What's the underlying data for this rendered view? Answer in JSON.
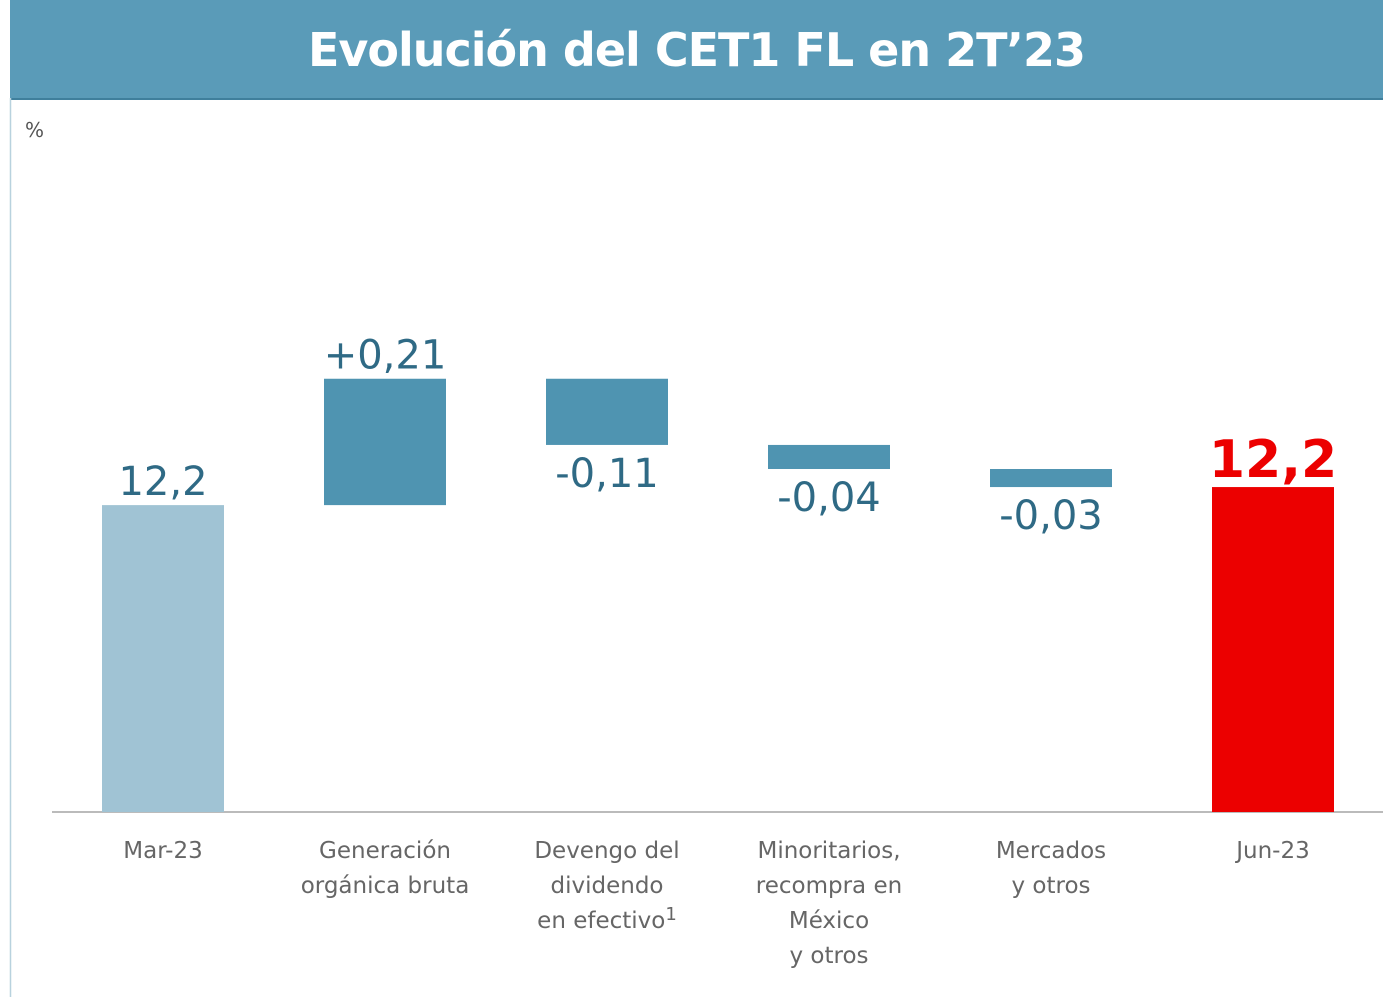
{
  "chart_data": {
    "type": "waterfall",
    "title": "Evolución del CET1 FL en 2T’23",
    "unit_label": "%",
    "categories": [
      "Mar-23",
      "Generación\norgánica bruta",
      "Devengo del\ndividendo\nen efectivo",
      "Minoritarios,\nrecompra en México\ny otros",
      "Mercados\ny otros",
      "Jun-23"
    ],
    "category_notes": [
      null,
      null,
      "1",
      null,
      null,
      null
    ],
    "measures": [
      "total",
      "relative",
      "relative",
      "relative",
      "relative",
      "total"
    ],
    "values": [
      12.2,
      0.21,
      -0.11,
      -0.04,
      -0.03,
      12.23
    ],
    "value_labels": [
      "12,2",
      "+0,21",
      "-0,11",
      "-0,04",
      "-0,03",
      "12,2"
    ],
    "colors": [
      "#a0c3d4",
      "#4f94b1",
      "#4f94b1",
      "#4f94b1",
      "#4f94b1",
      "#ec0000"
    ],
    "label_colors": [
      "#2f6a85",
      "#2f6a85",
      "#2f6a85",
      "#2f6a85",
      "#2f6a85",
      "#ec0000"
    ],
    "ylim": [
      11.69,
      12.84
    ]
  }
}
